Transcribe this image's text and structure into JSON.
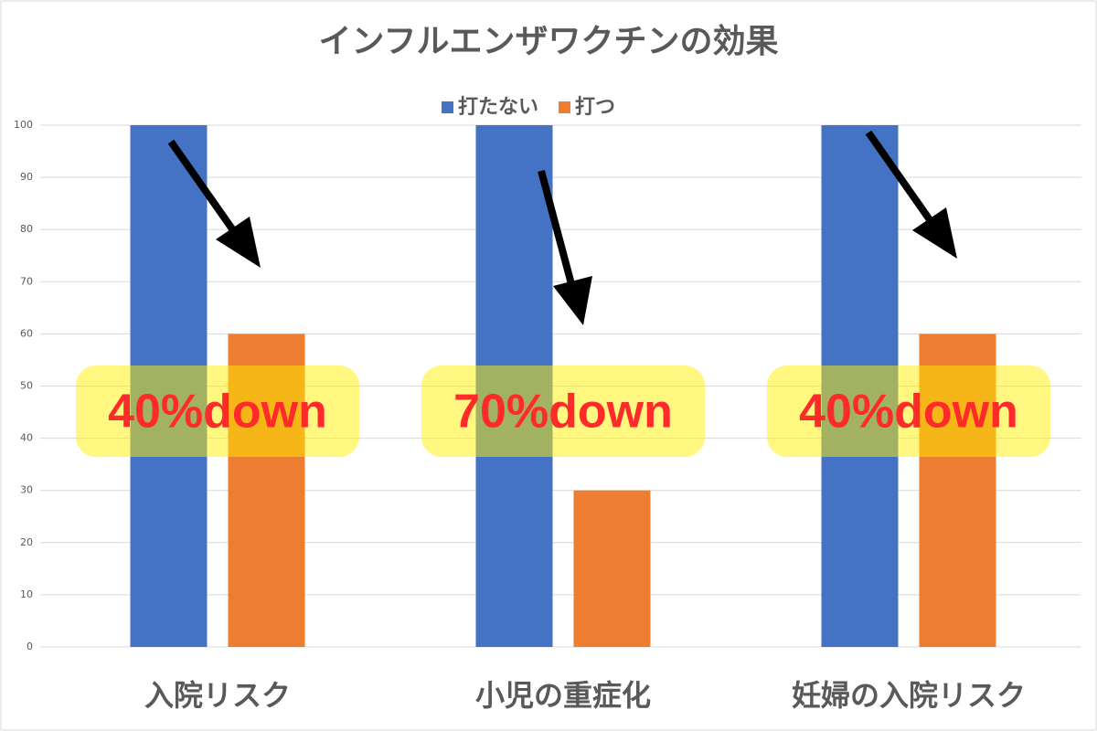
{
  "chart_data": {
    "type": "bar",
    "title": "インフルエンザワクチンの効果",
    "categories": [
      "入院リスク",
      "小児の重症化",
      "妊婦の入院リスク"
    ],
    "series": [
      {
        "name": "打たない",
        "color": "#4472c4",
        "values": [
          100,
          100,
          100
        ]
      },
      {
        "name": "打つ",
        "color": "#ed7d31",
        "values": [
          60,
          30,
          60
        ]
      }
    ],
    "annotations": [
      "40%down",
      "70%down",
      "40%down"
    ],
    "ylim": [
      0,
      100
    ],
    "yticks": [
      0,
      10,
      20,
      30,
      40,
      50,
      60,
      70,
      80,
      90,
      100
    ],
    "grid": true,
    "legend": "top"
  }
}
